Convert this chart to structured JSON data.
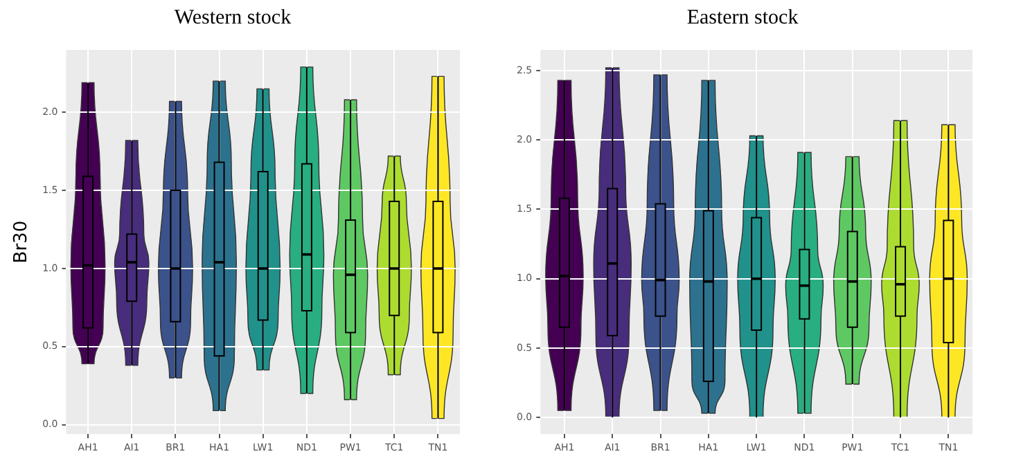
{
  "chart_data": [
    {
      "type": "box",
      "title": "Western stock",
      "ylabel": "Br30",
      "categories": [
        "AH1",
        "AI1",
        "BR1",
        "HA1",
        "LW1",
        "ND1",
        "PW1",
        "TC1",
        "TN1"
      ],
      "colors": [
        "#440154",
        "#472d7b",
        "#3b528b",
        "#2c728e",
        "#21918c",
        "#28ae80",
        "#5ec962",
        "#addc30",
        "#fde725"
      ],
      "boxes": [
        {
          "low": 0.39,
          "q1": 0.62,
          "median": 1.02,
          "q3": 1.59,
          "high": 2.19
        },
        {
          "low": 0.38,
          "q1": 0.79,
          "median": 1.04,
          "q3": 1.22,
          "high": 1.82
        },
        {
          "low": 0.3,
          "q1": 0.66,
          "median": 1.0,
          "q3": 1.5,
          "high": 2.07
        },
        {
          "low": 0.09,
          "q1": 0.44,
          "median": 1.04,
          "q3": 1.68,
          "high": 2.2
        },
        {
          "low": 0.35,
          "q1": 0.67,
          "median": 1.0,
          "q3": 1.62,
          "high": 2.15
        },
        {
          "low": 0.2,
          "q1": 0.73,
          "median": 1.09,
          "q3": 1.67,
          "high": 2.29
        },
        {
          "low": 0.16,
          "q1": 0.59,
          "median": 0.96,
          "q3": 1.31,
          "high": 2.08
        },
        {
          "low": 0.32,
          "q1": 0.7,
          "median": 1.0,
          "q3": 1.43,
          "high": 1.72
        },
        {
          "low": 0.04,
          "q1": 0.59,
          "median": 1.0,
          "q3": 1.43,
          "high": 2.23
        }
      ],
      "ylim": [
        -0.06,
        2.4
      ],
      "yticks": [
        {
          "value": 0,
          "label": "0.0"
        },
        0.5,
        {
          "value": 1,
          "label": "1.0"
        },
        1.5,
        {
          "value": 2,
          "label": "2.0"
        }
      ],
      "grid": true
    },
    {
      "type": "box",
      "title": "Eastern stock",
      "categories": [
        "AH1",
        "AI1",
        "BR1",
        "HA1",
        "LW1",
        "ND1",
        "PW1",
        "TC1",
        "TN1"
      ],
      "colors": [
        "#440154",
        "#472d7b",
        "#3b528b",
        "#2c728e",
        "#21918c",
        "#28ae80",
        "#5ec962",
        "#addc30",
        "#fde725"
      ],
      "boxes": [
        {
          "low": 0.05,
          "q1": 0.65,
          "median": 1.02,
          "q3": 1.58,
          "high": 2.43
        },
        {
          "low": 0.0,
          "q1": 0.59,
          "median": 1.11,
          "q3": 1.65,
          "high": 2.52
        },
        {
          "low": 0.05,
          "q1": 0.73,
          "median": 0.99,
          "q3": 1.54,
          "high": 2.47
        },
        {
          "low": 0.03,
          "q1": 0.26,
          "median": 0.98,
          "q3": 1.49,
          "high": 2.43
        },
        {
          "low": 0.0,
          "q1": 0.63,
          "median": 1.0,
          "q3": 1.44,
          "high": 2.03
        },
        {
          "low": 0.03,
          "q1": 0.71,
          "median": 0.95,
          "q3": 1.21,
          "high": 1.91
        },
        {
          "low": 0.24,
          "q1": 0.65,
          "median": 0.98,
          "q3": 1.34,
          "high": 1.88
        },
        {
          "low": 0.0,
          "q1": 0.73,
          "median": 0.96,
          "q3": 1.23,
          "high": 2.14
        },
        {
          "low": 0.0,
          "q1": 0.54,
          "median": 1.0,
          "q3": 1.42,
          "high": 2.11
        }
      ],
      "ylim": [
        -0.12,
        2.65
      ],
      "yticks": [
        {
          "value": 0,
          "label": "0.0"
        },
        0.5,
        {
          "value": 1,
          "label": "1.0"
        },
        1.5,
        {
          "value": 2,
          "label": "2.0"
        },
        2.5
      ],
      "grid": true
    }
  ]
}
